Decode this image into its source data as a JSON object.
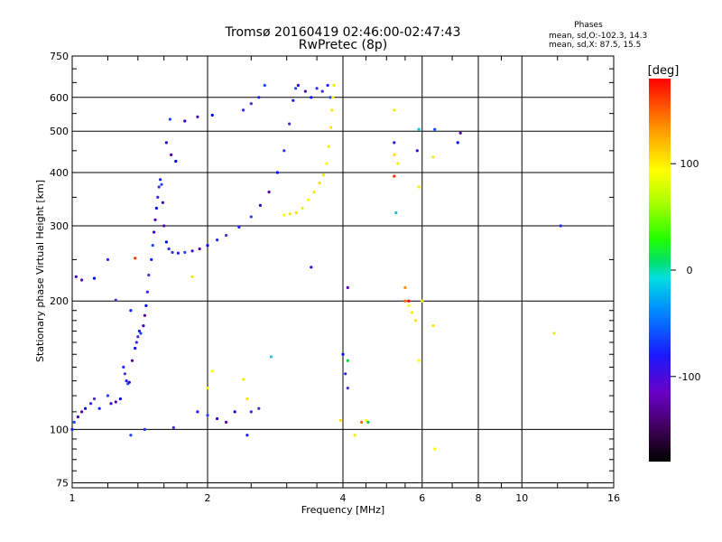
{
  "header": {
    "title_line1": "Tromsø 20160419 02:46:00-02:47:43",
    "title_line2": "RwPretec (8p)",
    "phases_title": "Phases",
    "phases_line1": "mean, sd,O:-102.3, 14.3",
    "phases_line2": "mean, sd,X:  87.5, 15.5"
  },
  "colorbar": {
    "unit_label": "[deg]",
    "ticks": [
      {
        "value": 100,
        "label": "100"
      },
      {
        "value": 0,
        "label": "0"
      },
      {
        "value": -100,
        "label": "-100"
      }
    ],
    "range": [
      -180,
      180
    ]
  },
  "chart_data": {
    "type": "scatter",
    "xlabel": "Frequency [MHz]",
    "ylabel": "Stationary phase Virtual Height [km]",
    "xscale": "log",
    "yscale": "log",
    "xlim": [
      1,
      16
    ],
    "ylim": [
      73,
      750
    ],
    "x_ticks": [
      {
        "value": 1,
        "label": "1"
      },
      {
        "value": 2,
        "label": "2"
      },
      {
        "value": 4,
        "label": "4"
      },
      {
        "value": 6,
        "label": "6"
      },
      {
        "value": 8,
        "label": "8"
      },
      {
        "value": 10,
        "label": "10"
      },
      {
        "value": 16,
        "label": "16"
      }
    ],
    "y_ticks": [
      {
        "value": 75,
        "label": "75"
      },
      {
        "value": 100,
        "label": "100"
      },
      {
        "value": 200,
        "label": "200"
      },
      {
        "value": 300,
        "label": "300"
      },
      {
        "value": 400,
        "label": "400"
      },
      {
        "value": 500,
        "label": "500"
      },
      {
        "value": 600,
        "label": "600"
      },
      {
        "value": 750,
        "label": "750"
      }
    ],
    "grid": true,
    "colorscale": "phase [deg], black(-180) to purple, blue, cyan, green, yellow, orange, red(+180)",
    "series": [
      {
        "name": "O",
        "description": "O-mode trace (phase around -100 deg, blue/violet)",
        "points": [
          [
            1.0,
            100
          ],
          [
            1.01,
            104
          ],
          [
            1.03,
            107
          ],
          [
            1.05,
            110
          ],
          [
            1.07,
            112
          ],
          [
            1.1,
            115
          ],
          [
            1.12,
            118
          ],
          [
            1.15,
            112
          ],
          [
            1.2,
            120
          ],
          [
            1.22,
            115
          ],
          [
            1.25,
            116
          ],
          [
            1.28,
            118
          ],
          [
            1.3,
            140
          ],
          [
            1.31,
            135
          ],
          [
            1.32,
            130
          ],
          [
            1.33,
            128
          ],
          [
            1.34,
            129
          ],
          [
            1.36,
            145
          ],
          [
            1.38,
            155
          ],
          [
            1.39,
            160
          ],
          [
            1.4,
            165
          ],
          [
            1.41,
            170
          ],
          [
            1.42,
            168
          ],
          [
            1.44,
            175
          ],
          [
            1.45,
            185
          ],
          [
            1.46,
            195
          ],
          [
            1.47,
            210
          ],
          [
            1.48,
            230
          ],
          [
            1.5,
            250
          ],
          [
            1.51,
            270
          ],
          [
            1.52,
            290
          ],
          [
            1.53,
            310
          ],
          [
            1.54,
            330
          ],
          [
            1.55,
            350
          ],
          [
            1.56,
            370
          ],
          [
            1.57,
            385
          ],
          [
            1.58,
            375
          ],
          [
            1.59,
            340
          ],
          [
            1.6,
            300
          ],
          [
            1.62,
            275
          ],
          [
            1.64,
            265
          ],
          [
            1.67,
            260
          ],
          [
            1.72,
            259
          ],
          [
            1.78,
            260
          ],
          [
            1.85,
            262
          ],
          [
            1.92,
            265
          ],
          [
            2.0,
            270
          ],
          [
            2.1,
            278
          ],
          [
            2.2,
            285
          ],
          [
            2.35,
            298
          ],
          [
            2.5,
            315
          ],
          [
            2.62,
            335
          ],
          [
            2.74,
            360
          ],
          [
            2.86,
            400
          ],
          [
            2.96,
            450
          ],
          [
            3.04,
            520
          ],
          [
            3.1,
            590
          ],
          [
            3.14,
            630
          ],
          [
            3.18,
            640
          ],
          [
            3.3,
            620
          ],
          [
            3.4,
            600
          ],
          [
            3.5,
            630
          ],
          [
            3.6,
            620
          ],
          [
            3.7,
            640
          ],
          [
            3.75,
            600
          ],
          [
            1.02,
            228
          ],
          [
            1.05,
            224
          ],
          [
            1.12,
            226
          ],
          [
            1.2,
            250
          ],
          [
            1.25,
            201
          ],
          [
            1.35,
            190
          ],
          [
            1.65,
            533
          ],
          [
            1.78,
            528
          ],
          [
            1.9,
            540
          ],
          [
            2.05,
            545
          ],
          [
            2.4,
            560
          ],
          [
            2.5,
            580
          ],
          [
            2.6,
            600
          ],
          [
            2.68,
            640
          ],
          [
            1.62,
            470
          ],
          [
            1.66,
            440
          ],
          [
            1.7,
            425
          ],
          [
            1.45,
            100
          ],
          [
            1.68,
            101
          ],
          [
            1.9,
            110
          ],
          [
            2.0,
            108
          ],
          [
            2.1,
            106
          ],
          [
            2.2,
            104
          ],
          [
            2.3,
            110
          ],
          [
            2.5,
            110
          ],
          [
            2.6,
            112
          ],
          [
            2.45,
            97
          ],
          [
            1.35,
            97
          ],
          [
            3.4,
            240
          ],
          [
            4.1,
            215
          ],
          [
            4.0,
            150
          ],
          [
            4.05,
            135
          ],
          [
            4.1,
            125
          ],
          [
            5.2,
            470
          ],
          [
            6.4,
            505
          ],
          [
            5.85,
            450
          ],
          [
            7.3,
            495
          ],
          [
            7.2,
            470
          ],
          [
            12.2,
            300
          ]
        ]
      },
      {
        "name": "X",
        "description": "X-mode trace (phase around +87 deg, yellow)",
        "points": [
          [
            2.96,
            318
          ],
          [
            3.05,
            320
          ],
          [
            3.15,
            322
          ],
          [
            3.25,
            330
          ],
          [
            3.35,
            345
          ],
          [
            3.45,
            360
          ],
          [
            3.55,
            378
          ],
          [
            3.62,
            395
          ],
          [
            3.68,
            420
          ],
          [
            3.72,
            460
          ],
          [
            3.76,
            510
          ],
          [
            3.78,
            560
          ],
          [
            3.8,
            600
          ],
          [
            3.82,
            640
          ],
          [
            3.95,
            105
          ],
          [
            4.25,
            97
          ],
          [
            4.5,
            105
          ],
          [
            5.2,
            560
          ],
          [
            5.2,
            440
          ],
          [
            5.3,
            420
          ],
          [
            5.6,
            195
          ],
          [
            5.7,
            188
          ],
          [
            5.8,
            180
          ],
          [
            5.9,
            370
          ],
          [
            5.9,
            145
          ],
          [
            6.0,
            200
          ],
          [
            6.35,
            175
          ],
          [
            6.35,
            435
          ],
          [
            6.4,
            90
          ],
          [
            11.8,
            168
          ],
          [
            2.45,
            118
          ],
          [
            2.0,
            125
          ],
          [
            2.05,
            137
          ],
          [
            2.4,
            131
          ],
          [
            1.85,
            228
          ]
        ]
      },
      {
        "name": "other",
        "description": "scattered echoes with other phases (red, orange, green, cyan)",
        "points": [
          [
            1.38,
            252
          ],
          [
            4.4,
            104
          ],
          [
            4.55,
            104
          ],
          [
            5.25,
            322
          ],
          [
            5.5,
            215
          ],
          [
            5.6,
            200
          ],
          [
            2.77,
            148
          ],
          [
            5.2,
            392
          ],
          [
            5.5,
            200
          ],
          [
            4.1,
            145
          ],
          [
            5.9,
            505
          ]
        ]
      }
    ]
  }
}
